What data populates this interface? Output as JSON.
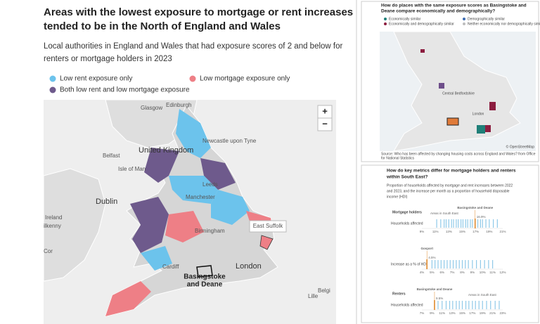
{
  "main": {
    "title_lines": [
      "Areas with the lowest exposure to mortgage or rent increases",
      "tended to be in the North of England and Wales"
    ],
    "subtitle_lines": [
      "Local authorities in England and Wales that had exposure scores of 2 and below for",
      "renters or mortgage holders in 2023"
    ],
    "legend": [
      {
        "label": "Low rent exposure only",
        "color": "#6cc3ec"
      },
      {
        "label": "Low mortgage exposure only",
        "color": "#ee7f86"
      },
      {
        "label": "Both low rent and low mortgage exposure",
        "color": "#6e5a8c"
      }
    ],
    "map_labels": [
      "Glasgow",
      "Edinburgh",
      "Newcastle upon Tyne",
      "United Kingdom",
      "Belfast",
      "Isle of Man",
      "Leeds",
      "Dublin",
      "Manchester",
      "Ireland",
      "ilkenny",
      "Birmingham",
      "Cor",
      "Cardiff",
      "London",
      "Belgi",
      "Lille"
    ],
    "highlight_lines": [
      "Basingstoke",
      "and Deane"
    ],
    "tooltip": "East Suffolk",
    "zoom": [
      "+",
      "−"
    ]
  },
  "similar": {
    "title_lines": [
      "How do places with the same exposure scores as Basingstoke and",
      "Deane compare economically and demographically?"
    ],
    "legend": [
      {
        "label": "Economically similar",
        "color": "#1f7f78"
      },
      {
        "label": "Demographically similar",
        "color": "#3e6db3"
      },
      {
        "label": "Economically and demographically similar",
        "color": "#8c1d3f"
      },
      {
        "label": "Neither economically nor demographically similar",
        "color": "#bdbdbd"
      }
    ],
    "map_labels": [
      "Central Bedfordshire",
      "London"
    ],
    "attribution": "© OpenStreetMap",
    "source_lines": [
      "Source: Who has been affected by changing housing costs across England and Wales? from Office",
      "for National Statistics"
    ]
  },
  "metrics": {
    "title_lines": [
      "How do key metrics differ for mortgage holders and renters",
      "within South East?"
    ],
    "intro_lines": [
      "Proportion of households affected by mortgage and rent increases between 2022",
      "and 2023, and the increase per month as a proportion of household disposable",
      "income (HDI)"
    ],
    "strips": [
      {
        "group": "Mortgage holders",
        "label": "Households affected",
        "xlim": [
          9,
          21
        ],
        "ticks": [
          {
            "value": 9,
            "label": "9%"
          },
          {
            "value": 11,
            "label": "11%"
          },
          {
            "value": 13,
            "label": "13%"
          },
          {
            "value": 15,
            "label": "15%"
          },
          {
            "value": 17,
            "label": "17%"
          },
          {
            "value": 19,
            "label": "19%"
          },
          {
            "value": 21,
            "label": "21%"
          }
        ],
        "values": [
          11.2,
          11.8,
          12.3,
          12.6,
          13.0,
          13.4,
          13.7,
          14.1,
          14.4,
          14.8,
          15.1,
          15.5,
          15.8,
          16.2,
          16.5,
          17.3,
          17.7,
          18.0,
          18.5,
          19.0,
          19.6,
          20.2
        ],
        "highlight": {
          "name": "Basingstoke and Deane",
          "value": 16.9,
          "value_label": "16.9%"
        },
        "area_label": "Areas in South East"
      },
      {
        "label": "Increase as a % of HDI",
        "xlim": [
          4,
          12
        ],
        "ticks": [
          {
            "value": 4,
            "label": "4%"
          },
          {
            "value": 5,
            "label": "5%"
          },
          {
            "value": 6,
            "label": "6%"
          },
          {
            "value": 7,
            "label": "7%"
          },
          {
            "value": 8,
            "label": "8%"
          },
          {
            "value": 9,
            "label": "9%"
          },
          {
            "value": 10,
            "label": "10%"
          },
          {
            "value": 11,
            "label": "11%"
          },
          {
            "value": 12,
            "label": "12%"
          }
        ],
        "values": [
          5.0,
          5.3,
          5.6,
          5.9,
          6.2,
          6.5,
          6.8,
          7.1,
          7.4,
          7.7,
          8.0,
          8.3,
          8.6,
          9.0,
          9.4,
          9.8,
          10.2,
          10.6,
          11.0
        ],
        "highlight": {
          "name": "Gosport",
          "value": 4.5,
          "value_label": "4.5%"
        }
      },
      {
        "group": "Renters",
        "label": "Households affected",
        "xlim": [
          7,
          23
        ],
        "ticks": [
          {
            "value": 7,
            "label": "7%"
          },
          {
            "value": 9,
            "label": "9%"
          },
          {
            "value": 11,
            "label": "11%"
          },
          {
            "value": 13,
            "label": "13%"
          },
          {
            "value": 15,
            "label": "15%"
          },
          {
            "value": 17,
            "label": "17%"
          },
          {
            "value": 19,
            "label": "19%"
          },
          {
            "value": 21,
            "label": "21%"
          },
          {
            "value": 23,
            "label": "23%"
          }
        ],
        "values": [
          10.2,
          11.0,
          11.8,
          12.5,
          13.1,
          13.8,
          14.4,
          15.0,
          15.7,
          16.3,
          17.0,
          17.6,
          18.3,
          19.0,
          19.8,
          20.6,
          21.5,
          22.3
        ],
        "highlight": {
          "name": "Basingstoke and Deane",
          "value": 9.5,
          "value_label": "9.5%"
        },
        "area_label": "Areas in South East"
      }
    ]
  }
}
